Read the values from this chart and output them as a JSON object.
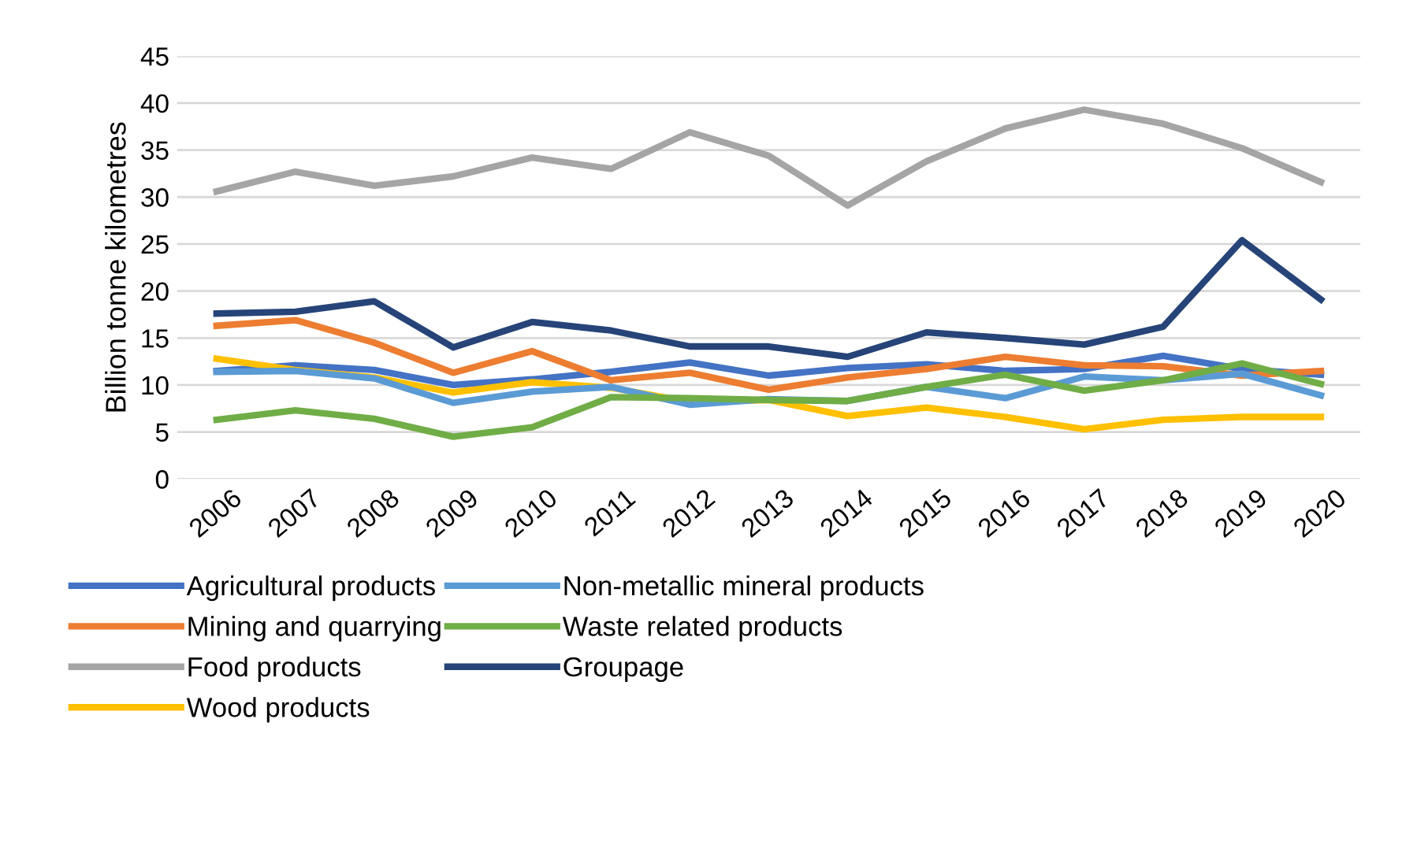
{
  "chart_data": {
    "type": "line",
    "ylabel": "Billion tonne kilometres",
    "categories": [
      "2006",
      "2007",
      "2008",
      "2009",
      "2010",
      "2011",
      "2012",
      "2013",
      "2014",
      "2015",
      "2016",
      "2017",
      "2018",
      "2019",
      "2020"
    ],
    "ylim": [
      0,
      45
    ],
    "yticks": [
      0,
      5,
      10,
      15,
      20,
      25,
      30,
      35,
      40,
      45
    ],
    "grid": "y",
    "legend": "bottom",
    "marker": "none",
    "line_style": "solid",
    "series": [
      {
        "name": "Agricultural products",
        "color": "#4472c4",
        "values": [
          11.5,
          12.1,
          11.6,
          10,
          10.6,
          11.4,
          12.4,
          11,
          11.8,
          12.2,
          11.5,
          11.7,
          13.1,
          11.7,
          11.1
        ]
      },
      {
        "name": "Mining and quarrying",
        "color": "#ed7d31",
        "values": [
          16.3,
          16.9,
          14.5,
          11.3,
          13.6,
          10.5,
          11.3,
          9.5,
          10.8,
          11.7,
          13,
          12.1,
          12,
          11,
          11.5
        ]
      },
      {
        "name": "Food products",
        "color": "#a5a5a5",
        "values": [
          30.6,
          32.7,
          31.2,
          32.2,
          34.2,
          33,
          36.9,
          34.4,
          29.1,
          33.8,
          37.3,
          39.3,
          37.8,
          35.2,
          31.6
        ]
      },
      {
        "name": "Wood products",
        "color": "#ffc000",
        "values": [
          12.8,
          11.6,
          10.8,
          9.2,
          10.3,
          9.7,
          8.2,
          8.4,
          6.7,
          7.6,
          6.6,
          5.3,
          6.3,
          6.6,
          6.6
        ]
      },
      {
        "name": "Non-metallic mineral products",
        "color": "#5b9bd5",
        "values": [
          11.4,
          11.5,
          10.7,
          8.1,
          9.3,
          9.8,
          7.9,
          8.5,
          8.3,
          9.8,
          8.6,
          10.9,
          10.5,
          11.2,
          8.9
        ]
      },
      {
        "name": "Waste related products",
        "color": "#70ad47",
        "values": [
          6.3,
          7.3,
          6.4,
          4.5,
          5.5,
          8.7,
          8.6,
          8.4,
          8.3,
          9.8,
          11.1,
          9.4,
          10.5,
          12.3,
          10.1
        ]
      },
      {
        "name": "Groupage",
        "color": "#264478",
        "values": [
          17.6,
          17.8,
          18.9,
          14,
          16.7,
          15.8,
          14.1,
          14.1,
          13,
          15.6,
          15,
          14.3,
          16.2,
          25.4,
          19.1
        ]
      }
    ]
  }
}
